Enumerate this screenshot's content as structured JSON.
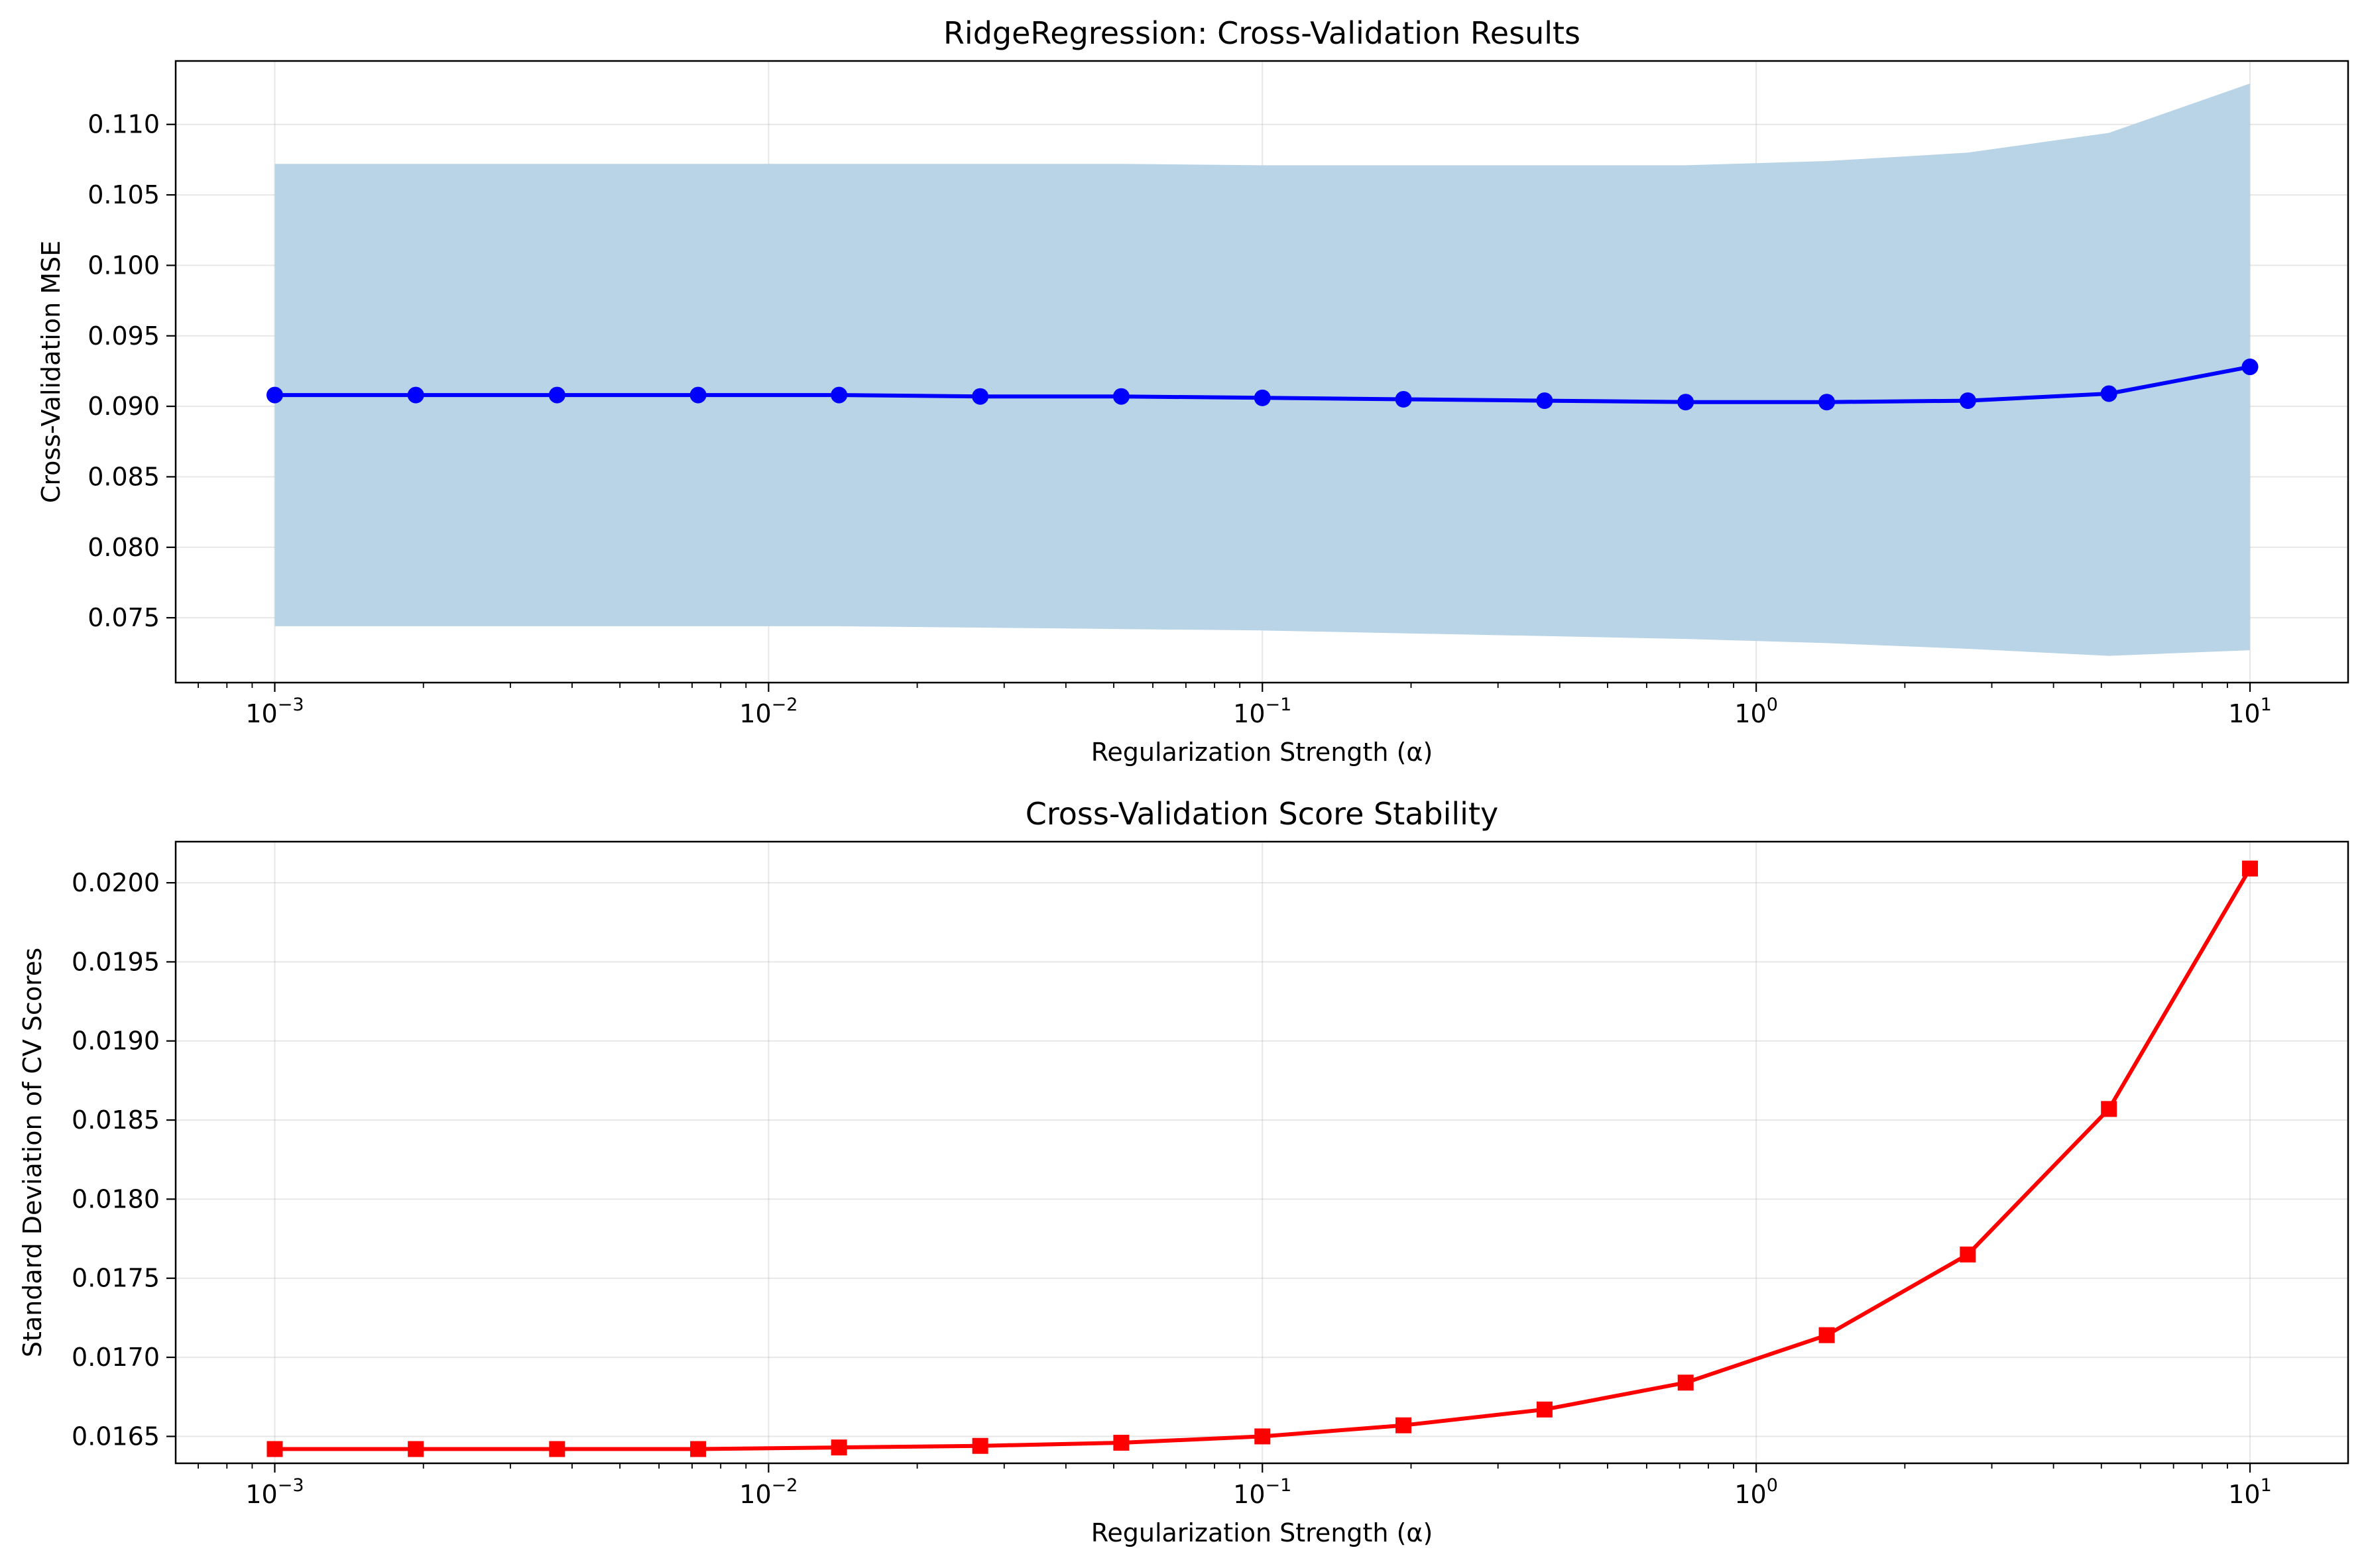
{
  "chart_data": [
    {
      "type": "line",
      "title": "RidgeRegression: Cross-Validation Results",
      "xlabel": "Regularization Strength (α)",
      "ylabel": "Cross-Validation MSE",
      "xscale": "log",
      "xlim": [
        0.00063,
        15.8
      ],
      "ylim": [
        0.0704,
        0.1145
      ],
      "grid": true,
      "x_ticks": [
        {
          "base": "10",
          "exp": "−3",
          "value": 0.001
        },
        {
          "base": "10",
          "exp": "−2",
          "value": 0.01
        },
        {
          "base": "10",
          "exp": "−1",
          "value": 0.1
        },
        {
          "base": "10",
          "exp": "0",
          "value": 1
        },
        {
          "base": "10",
          "exp": "1",
          "value": 10
        }
      ],
      "y_ticks": [
        "0.075",
        "0.080",
        "0.085",
        "0.090",
        "0.095",
        "0.100",
        "0.105",
        "0.110"
      ],
      "x": [
        0.001,
        0.00193,
        0.00373,
        0.0072,
        0.01389,
        0.02683,
        0.05179,
        0.1,
        0.19307,
        0.37276,
        0.7197,
        1.3895,
        2.6827,
        5.17947,
        10
      ],
      "series": [
        {
          "values": [
            0.0908,
            0.0908,
            0.0908,
            0.0908,
            0.0908,
            0.0907,
            0.0907,
            0.0906,
            0.0905,
            0.0904,
            0.0903,
            0.0903,
            0.0904,
            0.0909,
            0.0928
          ],
          "color": "#0000ff",
          "marker": "circle",
          "band_upper": [
            0.1072,
            0.1072,
            0.1072,
            0.1072,
            0.1072,
            0.1072,
            0.1072,
            0.1071,
            0.1071,
            0.1071,
            0.1071,
            0.1074,
            0.108,
            0.1094,
            0.1129
          ],
          "band_lower": [
            0.0744,
            0.0744,
            0.0744,
            0.0744,
            0.0744,
            0.0743,
            0.0742,
            0.0741,
            0.0739,
            0.0737,
            0.0735,
            0.0732,
            0.0728,
            0.0723,
            0.0727
          ],
          "band_color": "#b8d4e6"
        }
      ]
    },
    {
      "type": "line",
      "title": "Cross-Validation Score Stability",
      "xlabel": "Regularization Strength (α)",
      "ylabel": "Standard Deviation of CV Scores",
      "xscale": "log",
      "xlim": [
        0.00063,
        15.8
      ],
      "ylim": [
        0.01633,
        0.02026
      ],
      "grid": true,
      "x_ticks": [
        {
          "base": "10",
          "exp": "−3",
          "value": 0.001
        },
        {
          "base": "10",
          "exp": "−2",
          "value": 0.01
        },
        {
          "base": "10",
          "exp": "−1",
          "value": 0.1
        },
        {
          "base": "10",
          "exp": "0",
          "value": 1
        },
        {
          "base": "10",
          "exp": "1",
          "value": 10
        }
      ],
      "y_ticks": [
        "0.0165",
        "0.0170",
        "0.0175",
        "0.0180",
        "0.0185",
        "0.0190",
        "0.0195",
        "0.0200"
      ],
      "x": [
        0.001,
        0.00193,
        0.00373,
        0.0072,
        0.01389,
        0.02683,
        0.05179,
        0.1,
        0.19307,
        0.37276,
        0.7197,
        1.3895,
        2.6827,
        5.17947,
        10
      ],
      "series": [
        {
          "values": [
            0.01642,
            0.01642,
            0.01642,
            0.01642,
            0.01643,
            0.01644,
            0.01646,
            0.0165,
            0.01657,
            0.01667,
            0.01684,
            0.01714,
            0.01765,
            0.01857,
            0.02009
          ],
          "color": "#ff0000",
          "marker": "square"
        }
      ]
    }
  ]
}
